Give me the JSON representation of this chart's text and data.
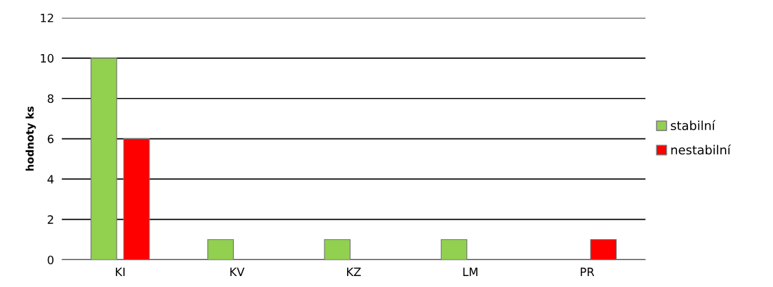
{
  "chart_data": {
    "type": "bar",
    "ylabel": "hodnoty ks",
    "categories": [
      "KI",
      "KV",
      "KZ",
      "LM",
      "PR"
    ],
    "series": [
      {
        "name": "stabilní",
        "color": "#92d050",
        "values": [
          10,
          1,
          1,
          1,
          0
        ]
      },
      {
        "name": "nestabilní",
        "color": "#ff0000",
        "values": [
          6,
          0,
          0,
          0,
          1
        ]
      }
    ],
    "ylim": [
      0,
      12
    ],
    "yticks": [
      0,
      2,
      4,
      6,
      8,
      10,
      12
    ],
    "grid": "y",
    "legend": "right"
  }
}
